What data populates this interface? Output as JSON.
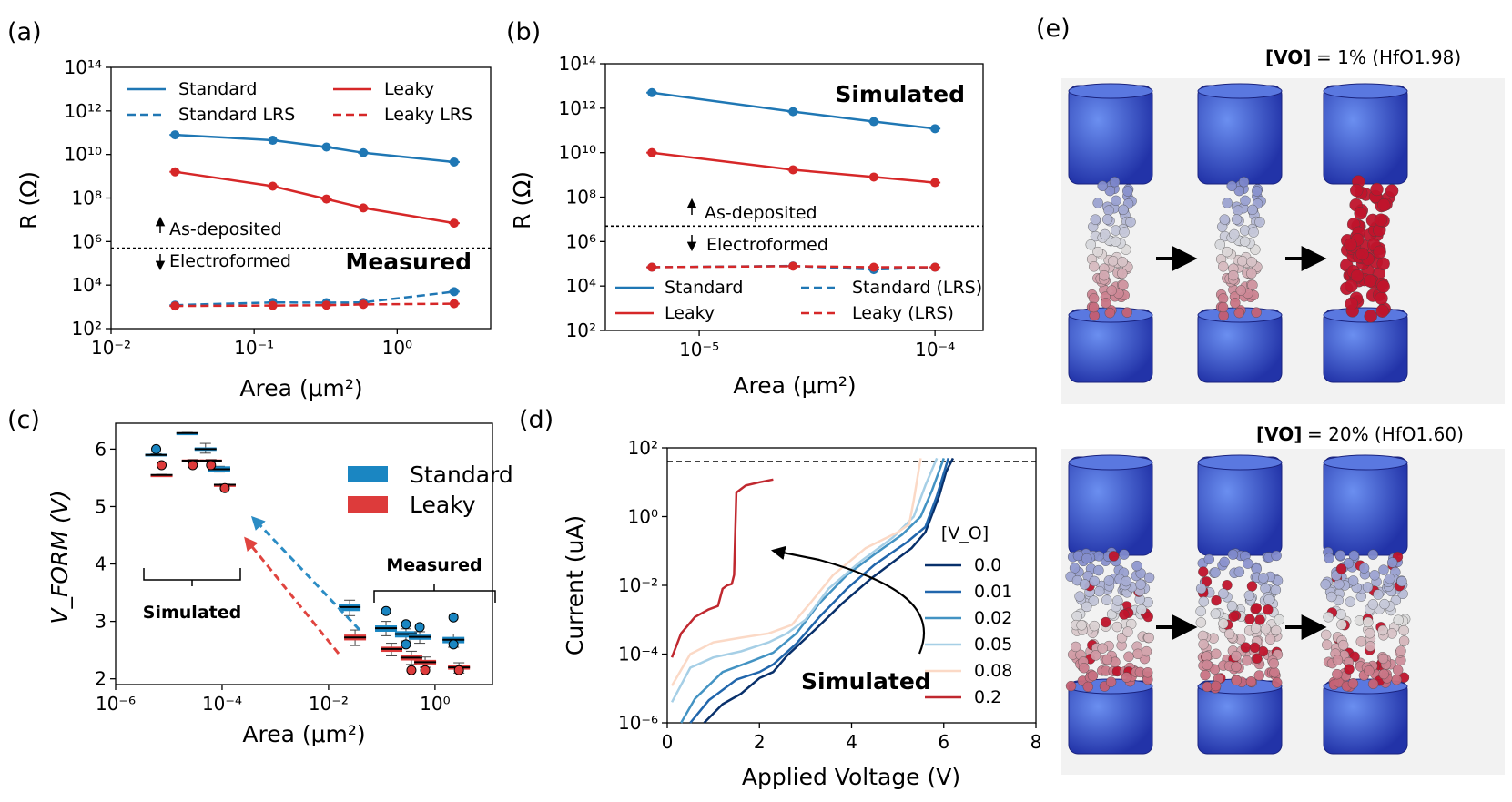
{
  "panels": {
    "a": {
      "label": "(a)",
      "ylabel": "R (Ω)",
      "xlabel": "Area (μm²)",
      "annotations": {
        "as_deposited": "As-deposited",
        "electroformed": "Electroformed",
        "tag": "Measured"
      },
      "legend": [
        "Standard",
        "Standard LRS",
        "Leaky",
        "Leaky LRS"
      ],
      "xticks": [
        "10⁻²",
        "10⁻¹",
        "10⁰"
      ],
      "yticks": [
        "10²",
        "10⁴",
        "10⁶",
        "10⁸",
        "10¹⁰",
        "10¹²",
        "10¹⁴"
      ]
    },
    "b": {
      "label": "(b)",
      "ylabel": "R (Ω)",
      "xlabel": "Area (μm²)",
      "annotations": {
        "as_deposited": "As-deposited",
        "electroformed": "Electroformed",
        "tag": "Simulated"
      },
      "legend": [
        "Standard",
        "Standard (LRS)",
        "Leaky",
        "Leaky (LRS)"
      ],
      "xticks": [
        "10⁻⁵",
        "10⁻⁴"
      ],
      "yticks": [
        "10²",
        "10⁴",
        "10⁶",
        "10⁸",
        "10¹⁰",
        "10¹²",
        "10¹⁴"
      ]
    },
    "c": {
      "label": "(c)",
      "ylabel": "V_FORM (V)",
      "xlabel": "Area (μm²)",
      "annotations": {
        "simulated": "Simulated",
        "measured": "Measured"
      },
      "legend": [
        "Standard",
        "Leaky"
      ],
      "xticks": [
        "10⁻⁶",
        "10⁻⁴",
        "10⁻²",
        "10⁰"
      ],
      "yticks": [
        "2",
        "3",
        "4",
        "5",
        "6"
      ]
    },
    "d": {
      "label": "(d)",
      "ylabel": "Current (uA)",
      "xlabel": "Applied Voltage (V)",
      "annotations": {
        "tag": "Simulated"
      },
      "legend_title": "[V_O]",
      "legend": [
        "0.0",
        "0.01",
        "0.02",
        "0.05",
        "0.08",
        "0.2"
      ],
      "xticks": [
        "0",
        "2",
        "4",
        "6",
        "8"
      ],
      "yticks": [
        "10⁻⁶",
        "10⁻⁴",
        "10⁻²",
        "10⁰",
        "10²"
      ]
    },
    "e": {
      "label": "(e)",
      "top_title": "= 1% (HfO1.98)",
      "bottom_title": "= 20% (HfO1.60)",
      "vo_symbol": "[VO]"
    }
  },
  "chart_data": [
    {
      "type": "line",
      "panel": "a",
      "xlabel": "Area (μm²)",
      "ylabel": "R (Ω)",
      "xscale": "log",
      "yscale": "log",
      "xlim": [
        0.01,
        4.5
      ],
      "ylim": [
        100,
        100000000000000.0
      ],
      "threshold": 500000,
      "x": [
        0.028,
        0.135,
        0.32,
        0.58,
        2.5
      ],
      "series": [
        {
          "name": "Standard",
          "color": "#1f77b4",
          "dash": false,
          "values": [
            80000000000.0,
            45000000000.0,
            22000000000.0,
            12000000000.0,
            4500000000.0
          ]
        },
        {
          "name": "Standard LRS",
          "color": "#1f77b4",
          "dash": true,
          "values": [
            1200,
            1600,
            1550,
            1600,
            5000
          ]
        },
        {
          "name": "Leaky",
          "color": "#d62728",
          "dash": false,
          "values": [
            1600000000.0,
            350000000.0,
            90000000.0,
            35000000.0,
            7000000.0
          ]
        },
        {
          "name": "Leaky LRS",
          "color": "#d62728",
          "dash": true,
          "values": [
            1100,
            1150,
            1200,
            1300,
            1400
          ]
        }
      ]
    },
    {
      "type": "line",
      "panel": "b",
      "xlabel": "Area (μm²)",
      "ylabel": "R (Ω)",
      "xscale": "log",
      "yscale": "log",
      "xlim": [
        4e-06,
        0.00016
      ],
      "ylim": [
        100,
        100000000000000.0
      ],
      "threshold": 5000000,
      "x": [
        6.3e-06,
        2.5e-05,
        5.5e-05,
        0.0001
      ],
      "series": [
        {
          "name": "Standard",
          "color": "#1f77b4",
          "dash": false,
          "values": [
            5000000000000.0,
            700000000000.0,
            250000000000.0,
            120000000000.0
          ]
        },
        {
          "name": "Standard (LRS)",
          "color": "#1f77b4",
          "dash": true,
          "values": [
            70000,
            80000,
            55000,
            70000
          ]
        },
        {
          "name": "Leaky",
          "color": "#d62728",
          "dash": false,
          "values": [
            10000000000.0,
            1700000000.0,
            800000000.0,
            450000000.0
          ]
        },
        {
          "name": "Leaky (LRS)",
          "color": "#d62728",
          "dash": true,
          "values": [
            70000,
            78000,
            70000,
            70000
          ]
        }
      ]
    },
    {
      "type": "box",
      "panel": "c",
      "xlabel": "Area (μm²)",
      "ylabel": "V_FORM (V)",
      "xscale": "log",
      "xlim": [
        1e-06,
        12
      ],
      "ylim": [
        1.9,
        6.45
      ],
      "series": [
        {
          "name": "Standard",
          "color": "#1a86c2",
          "boxes": [
            {
              "x": 6.5e-06,
              "median": 5.9,
              "q1": 5.9,
              "q3": 5.92,
              "lo": 5.9,
              "hi": 5.92,
              "outliers": [
                6.0
              ]
            },
            {
              "x": 2.5e-05,
              "median": 6.28,
              "q1": 6.27,
              "q3": 6.29,
              "lo": 6.27,
              "hi": 6.29,
              "outliers": []
            },
            {
              "x": 5.5e-05,
              "median": 6.0,
              "q1": 5.97,
              "q3": 6.03,
              "lo": 5.93,
              "hi": 6.1,
              "outliers": []
            },
            {
              "x": 0.0001,
              "median": 5.65,
              "q1": 5.6,
              "q3": 5.7,
              "lo": 5.6,
              "hi": 5.7,
              "outliers": []
            },
            {
              "x": 0.028,
              "median": 3.25,
              "q1": 3.18,
              "q3": 3.3,
              "lo": 3.1,
              "hi": 3.37,
              "outliers": []
            },
            {
              "x": 0.135,
              "median": 2.88,
              "q1": 2.82,
              "q3": 2.93,
              "lo": 2.75,
              "hi": 3.0,
              "outliers": [
                3.18
              ]
            },
            {
              "x": 0.32,
              "median": 2.78,
              "q1": 2.72,
              "q3": 2.83,
              "lo": 2.66,
              "hi": 2.87,
              "outliers": [
                2.6,
                2.95
              ]
            },
            {
              "x": 0.58,
              "median": 2.73,
              "q1": 2.68,
              "q3": 2.77,
              "lo": 2.62,
              "hi": 2.82,
              "outliers": [
                2.9
              ]
            },
            {
              "x": 2.5,
              "median": 2.68,
              "q1": 2.62,
              "q3": 2.73,
              "lo": 2.55,
              "hi": 2.78,
              "outliers": [
                3.07,
                2.6
              ]
            }
          ]
        },
        {
          "name": "Leaky",
          "color": "#dd3b3b",
          "boxes": [
            {
              "x": 6.5e-06,
              "median": 5.55,
              "q1": 5.54,
              "q3": 5.56,
              "lo": 5.54,
              "hi": 5.56,
              "outliers": [
                5.72
              ]
            },
            {
              "x": 2.5e-05,
              "median": 5.8,
              "q1": 5.78,
              "q3": 5.82,
              "lo": 5.78,
              "hi": 5.82,
              "outliers": [
                5.72
              ]
            },
            {
              "x": 5.5e-05,
              "median": 5.8,
              "q1": 5.78,
              "q3": 5.82,
              "lo": 5.78,
              "hi": 5.82,
              "outliers": [
                5.72
              ]
            },
            {
              "x": 0.0001,
              "median": 5.38,
              "q1": 5.37,
              "q3": 5.39,
              "lo": 5.37,
              "hi": 5.39,
              "outliers": [
                5.32
              ]
            },
            {
              "x": 0.028,
              "median": 2.72,
              "q1": 2.67,
              "q3": 2.77,
              "lo": 2.58,
              "hi": 2.85,
              "outliers": []
            },
            {
              "x": 0.135,
              "median": 2.52,
              "q1": 2.47,
              "q3": 2.56,
              "lo": 2.4,
              "hi": 2.62,
              "outliers": []
            },
            {
              "x": 0.32,
              "median": 2.37,
              "q1": 2.32,
              "q3": 2.42,
              "lo": 2.25,
              "hi": 2.48,
              "outliers": [
                2.15
              ]
            },
            {
              "x": 0.58,
              "median": 2.29,
              "q1": 2.25,
              "q3": 2.33,
              "lo": 2.2,
              "hi": 2.38,
              "outliers": [
                2.15
              ]
            },
            {
              "x": 2.5,
              "median": 2.2,
              "q1": 2.16,
              "q3": 2.24,
              "lo": 2.1,
              "hi": 2.28,
              "outliers": [
                2.15
              ]
            }
          ]
        }
      ]
    },
    {
      "type": "line",
      "panel": "d",
      "xlabel": "Applied Voltage (V)",
      "ylabel": "Current (uA)",
      "yscale": "log",
      "xlim": [
        0,
        8
      ],
      "ylim": [
        1e-06,
        100
      ],
      "threshold": 40,
      "series": [
        {
          "name": "0.0",
          "color": "#08306b",
          "points": [
            [
              0.8,
              1e-06
            ],
            [
              1.2,
              3.5e-06
            ],
            [
              1.6,
              7e-06
            ],
            [
              2.0,
              2e-05
            ],
            [
              2.3,
              3e-05
            ],
            [
              2.6,
              9e-05
            ],
            [
              3.2,
              0.0005
            ],
            [
              3.8,
              0.003
            ],
            [
              4.4,
              0.015
            ],
            [
              5.0,
              0.06
            ],
            [
              5.3,
              0.12
            ],
            [
              5.6,
              0.35
            ],
            [
              5.9,
              4
            ],
            [
              6.05,
              20
            ],
            [
              6.2,
              50
            ]
          ]
        },
        {
          "name": "0.01",
          "color": "#2166ac",
          "points": [
            [
              0.5,
              1e-06
            ],
            [
              0.9,
              4.5e-06
            ],
            [
              1.5,
              1.8e-05
            ],
            [
              2.0,
              3e-05
            ],
            [
              2.3,
              5e-05
            ],
            [
              2.8,
              0.0002
            ],
            [
              3.3,
              0.0012
            ],
            [
              3.9,
              0.008
            ],
            [
              4.5,
              0.04
            ],
            [
              5.2,
              0.18
            ],
            [
              5.6,
              0.5
            ],
            [
              5.85,
              4
            ],
            [
              6.1,
              50
            ]
          ]
        },
        {
          "name": "0.02",
          "color": "#4393c3",
          "points": [
            [
              0.3,
              1e-06
            ],
            [
              0.6,
              5e-06
            ],
            [
              1.2,
              3e-05
            ],
            [
              1.8,
              6e-05
            ],
            [
              2.3,
              0.00011
            ],
            [
              2.8,
              0.0004
            ],
            [
              3.3,
              0.003
            ],
            [
              3.9,
              0.02
            ],
            [
              4.5,
              0.08
            ],
            [
              5.1,
              0.3
            ],
            [
              5.5,
              1
            ],
            [
              5.75,
              6
            ],
            [
              6.0,
              50
            ]
          ]
        },
        {
          "name": "0.05",
          "color": "#a6cfe6",
          "points": [
            [
              0.1,
              4e-06
            ],
            [
              0.5,
              4e-05
            ],
            [
              1.0,
              8e-05
            ],
            [
              1.6,
              0.00012
            ],
            [
              2.2,
              0.00022
            ],
            [
              2.6,
              0.0004
            ],
            [
              3.0,
              0.001
            ],
            [
              3.5,
              0.008
            ],
            [
              4.2,
              0.05
            ],
            [
              4.9,
              0.25
            ],
            [
              5.35,
              1
            ],
            [
              5.6,
              8
            ],
            [
              5.85,
              50
            ]
          ]
        },
        {
          "name": "0.08",
          "color": "#fbd9c6",
          "points": [
            [
              0.1,
              1.2e-05
            ],
            [
              0.5,
              0.0001
            ],
            [
              1.0,
              0.00022
            ],
            [
              1.6,
              0.0003
            ],
            [
              2.2,
              0.0004
            ],
            [
              2.7,
              0.0007
            ],
            [
              3.1,
              0.003
            ],
            [
              3.6,
              0.02
            ],
            [
              4.3,
              0.12
            ],
            [
              5.0,
              0.35
            ],
            [
              5.25,
              0.6
            ],
            [
              5.35,
              3
            ],
            [
              5.5,
              50
            ]
          ]
        },
        {
          "name": "0.2",
          "color": "#c0282f",
          "points": [
            [
              0.1,
              8e-05
            ],
            [
              0.3,
              0.0004
            ],
            [
              0.6,
              0.0012
            ],
            [
              0.9,
              0.002
            ],
            [
              1.1,
              0.0025
            ],
            [
              1.2,
              0.008
            ],
            [
              1.3,
              0.01
            ],
            [
              1.4,
              0.011
            ],
            [
              1.45,
              0.02
            ],
            [
              1.5,
              5
            ],
            [
              1.7,
              8
            ],
            [
              2.0,
              10
            ],
            [
              2.3,
              12
            ]
          ]
        }
      ]
    }
  ]
}
